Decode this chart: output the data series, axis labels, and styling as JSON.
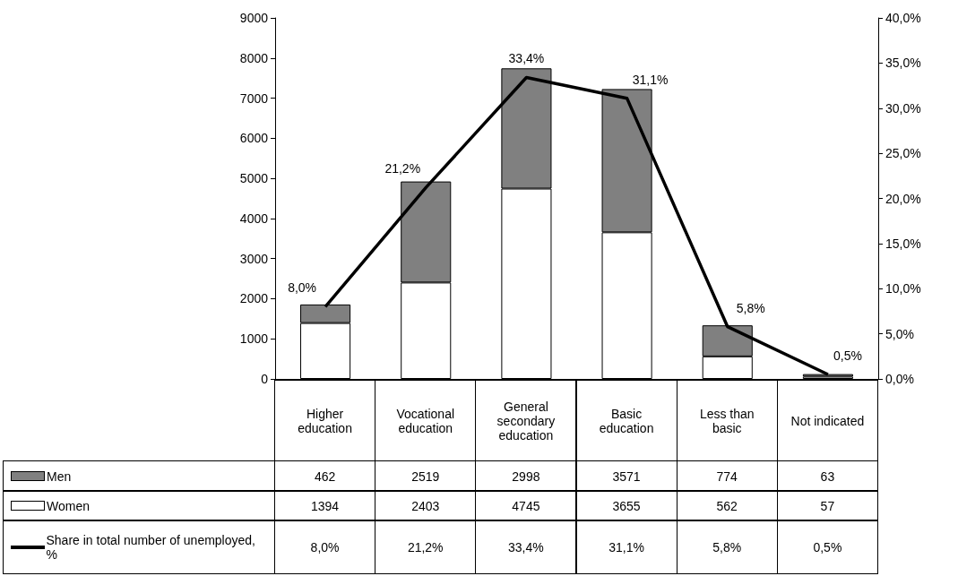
{
  "chart_data": {
    "type": "bar",
    "stacked": true,
    "categories": [
      "Higher education",
      "Vocational education",
      "General secondary education",
      "Basic education",
      "Less than basic",
      "Not indicated"
    ],
    "series": [
      {
        "name": "Women",
        "color": "#ffffff",
        "values": [
          1394,
          2403,
          4745,
          3655,
          562,
          57
        ]
      },
      {
        "name": "Men",
        "color": "#808080",
        "values": [
          462,
          2519,
          2998,
          3571,
          774,
          63
        ]
      },
      {
        "name": "Share in total number of unemployed, %",
        "type": "line",
        "axis": "y2",
        "color": "#000000",
        "values": [
          8.0,
          21.2,
          33.4,
          31.1,
          5.8,
          0.5
        ],
        "value_labels": [
          "8,0%",
          "21,2%",
          "33,4%",
          "31,1%",
          "5,8%",
          "0,5%"
        ]
      }
    ],
    "data_labels": true,
    "ylim": [
      0,
      9000
    ],
    "yticks": [
      0,
      1000,
      2000,
      3000,
      4000,
      5000,
      6000,
      7000,
      8000,
      9000
    ],
    "y2lim": [
      0,
      40
    ],
    "y2ticks": [
      {
        "value": 0,
        "label": "0,0%"
      },
      {
        "value": 5,
        "label": "5,0%"
      },
      {
        "value": 10,
        "label": "10,0%"
      },
      {
        "value": 15,
        "label": "15,0%"
      },
      {
        "value": 20,
        "label": "20,0%"
      },
      {
        "value": 25,
        "label": "25,0%"
      },
      {
        "value": 30,
        "label": "30,0%"
      },
      {
        "value": 35,
        "label": "35,0%"
      },
      {
        "value": 40,
        "label": "40,0%"
      }
    ],
    "grid": false,
    "legend": "bottom",
    "marker": "none",
    "line_style": "solid"
  }
}
